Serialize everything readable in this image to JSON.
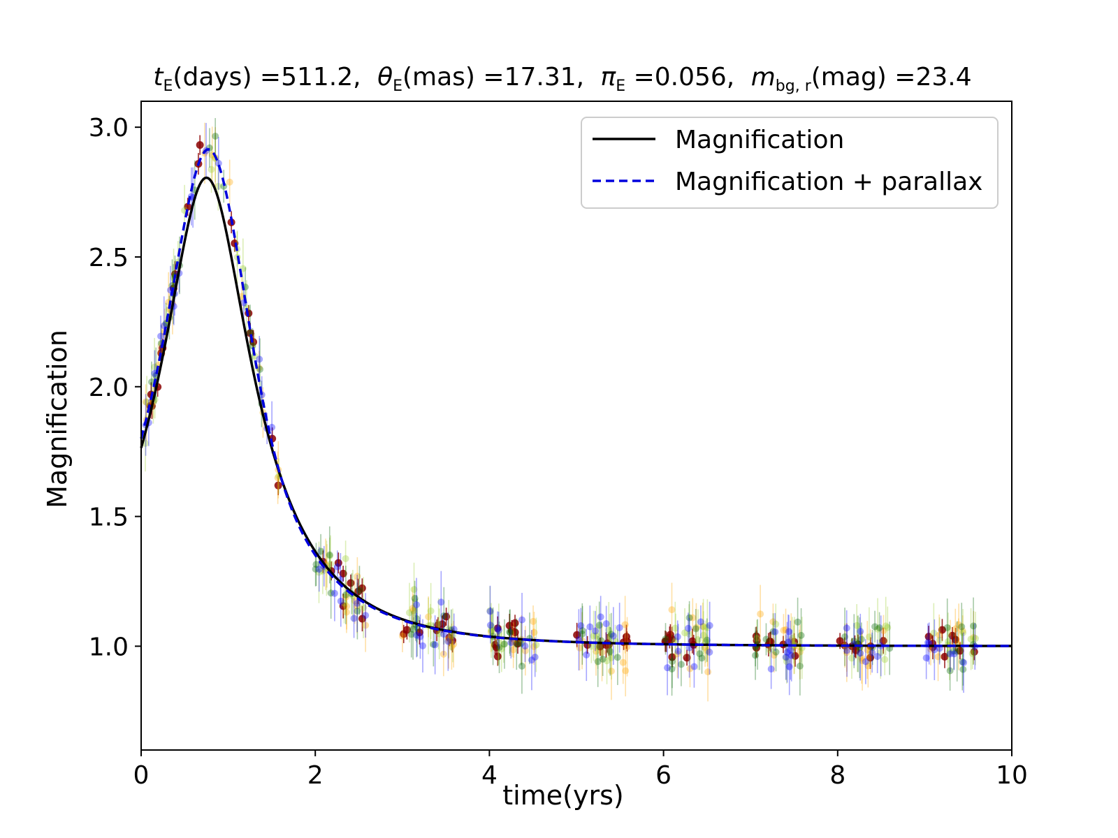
{
  "chart_data": {
    "type": "scatter",
    "title": {
      "t_symbol": "t",
      "t_sub": "E",
      "t_unit": "(days) =511.2,",
      "theta_symbol": "θ",
      "theta_sub": "E",
      "theta_unit": "(mas) =17.31,",
      "pi_symbol": "π",
      "pi_sub": "E",
      "pi_unit": " =0.056,",
      "m_symbol": "m",
      "m_sub": "bg, r",
      "m_unit": "(mag) =23.4"
    },
    "xlabel": "time(yrs)",
    "ylabel": "Magnification",
    "xlim": [
      0,
      10
    ],
    "ylim": [
      0.6,
      3.1
    ],
    "xticks": [
      0,
      2,
      4,
      6,
      8,
      10
    ],
    "xtick_labels": [
      "0",
      "2",
      "4",
      "6",
      "8",
      "10"
    ],
    "yticks": [
      1.0,
      1.5,
      2.0,
      2.5,
      3.0
    ],
    "ytick_labels": [
      "1.0",
      "1.5",
      "2.0",
      "2.5",
      "3.0"
    ],
    "grid": false,
    "legend": {
      "placement": "top-right",
      "entries": [
        {
          "label": "Magnification",
          "color": "#000000",
          "dash": "solid"
        },
        {
          "label": "Magnification + parallax",
          "color": "#0000dd",
          "dash": "dashed"
        }
      ]
    },
    "models": [
      {
        "name": "Magnification",
        "color": "#000000",
        "dash": "solid",
        "t0": 0.75,
        "tE": 1.4,
        "u0": 0.375
      },
      {
        "name": "Magnification + parallax",
        "color": "#0000dd",
        "dash": "dashed",
        "t0": 0.72,
        "tE": 1.4,
        "u0": 0.375,
        "bump_t": 1.15,
        "bump_w": 0.3,
        "bump_a": 0.15
      }
    ],
    "data_colors": [
      "#8b0000",
      "#ffa500",
      "#9acd32",
      "#006400",
      "#0000ff"
    ],
    "observing_seasons": [
      [
        0.0,
        0.55
      ],
      [
        0.55,
        1.6
      ],
      [
        2.0,
        2.6
      ],
      [
        3.0,
        3.6
      ],
      [
        4.0,
        4.55
      ],
      [
        5.0,
        5.6
      ],
      [
        6.0,
        6.55
      ],
      [
        7.0,
        7.6
      ],
      [
        8.0,
        8.6
      ],
      [
        9.0,
        9.6
      ]
    ],
    "points_per_season": 45,
    "scatter_sigma": 0.05
  }
}
